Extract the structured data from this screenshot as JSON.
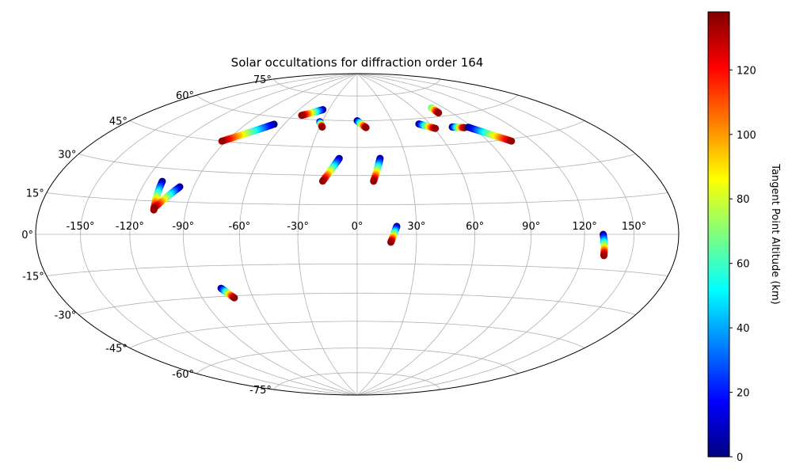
{
  "chart_data": {
    "type": "scatter",
    "projection": "hammer",
    "title": "Solar occultations for diffraction order 164",
    "x_ticks": [
      "-150°",
      "-120°",
      "-90°",
      "-60°",
      "-30°",
      "0°",
      "30°",
      "60°",
      "90°",
      "120°",
      "150°"
    ],
    "x_tick_values": [
      -150,
      -120,
      -90,
      -60,
      -30,
      0,
      30,
      60,
      90,
      120,
      150
    ],
    "y_ticks": [
      "75°",
      "60°",
      "45°",
      "30°",
      "15°",
      "0°",
      "-15°",
      "-30°",
      "-45°",
      "-60°",
      "-75°"
    ],
    "y_tick_values": [
      75,
      60,
      45,
      30,
      15,
      0,
      -15,
      -30,
      -45,
      -60,
      -75
    ],
    "xlim": [
      -180,
      180
    ],
    "ylim": [
      -90,
      90
    ],
    "grid": true,
    "colorbar": {
      "label": "Tangent Point Altitude (km)",
      "range": [
        0,
        138
      ],
      "ticks": [
        "0",
        "20",
        "40",
        "60",
        "80",
        "100",
        "120"
      ],
      "tick_values": [
        0,
        20,
        40,
        60,
        80,
        100,
        120
      ],
      "colormap": "jet"
    },
    "tracks": [
      {
        "lon_start": -110,
        "lat_start": 24,
        "lon_end": -108,
        "lat_end": 11,
        "alt_start": 0,
        "alt_end": 135
      },
      {
        "lon_start": -98,
        "lat_start": 22,
        "lon_end": -108,
        "lat_end": 12,
        "alt_start": 0,
        "alt_end": 135
      },
      {
        "lon_start": -68,
        "lat_start": 56,
        "lon_end": -93,
        "lat_end": 45,
        "alt_start": 0,
        "alt_end": 135
      },
      {
        "lon_start": -36,
        "lat_start": 66,
        "lon_end": -52,
        "lat_end": 62,
        "alt_start": 0,
        "alt_end": 135
      },
      {
        "lon_start": -32,
        "lat_start": 59,
        "lon_end": -28,
        "lat_end": 56,
        "alt_start": 0,
        "alt_end": 135
      },
      {
        "lon_start": -11,
        "lat_start": 39,
        "lon_end": -19,
        "lat_end": 27,
        "alt_start": 0,
        "alt_end": 135
      },
      {
        "lon_start": 0,
        "lat_start": 60,
        "lon_end": 7,
        "lat_end": 56,
        "alt_start": 0,
        "alt_end": 135
      },
      {
        "lon_start": 14,
        "lat_start": 39,
        "lon_end": 9,
        "lat_end": 27,
        "alt_start": 0,
        "alt_end": 135
      },
      {
        "lon_start": 20,
        "lat_start": 4,
        "lon_end": 17,
        "lat_end": -4,
        "alt_start": 0,
        "alt_end": 135
      },
      {
        "lon_start": 51,
        "lat_start": 57,
        "lon_end": 61,
        "lat_end": 54,
        "alt_start": 0,
        "alt_end": 135
      },
      {
        "lon_start": 75,
        "lat_start": 54,
        "lon_end": 84,
        "lat_end": 53,
        "alt_start": 0,
        "alt_end": 135
      },
      {
        "lon_start": 87,
        "lat_start": 53,
        "lon_end": 106,
        "lat_end": 44,
        "alt_start": 0,
        "alt_end": 135
      },
      {
        "lon_start": 78,
        "lat_start": 65,
        "lon_end": 78,
        "lat_end": 62,
        "alt_start": 60,
        "alt_end": 135
      },
      {
        "lon_start": 131,
        "lat_start": 0,
        "lon_end": 133,
        "lat_end": -9,
        "alt_start": 0,
        "alt_end": 135
      },
      {
        "lon_start": -76,
        "lat_start": -26,
        "lon_end": -71,
        "lat_end": -31,
        "alt_start": 0,
        "alt_end": 135
      }
    ]
  }
}
